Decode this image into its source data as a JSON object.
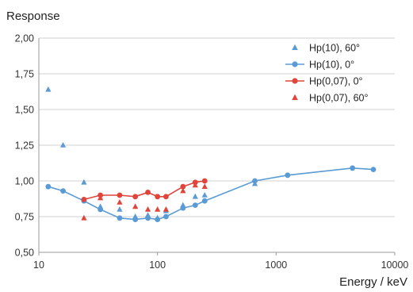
{
  "chart_data": {
    "type": "scatter",
    "ylabel": "Response",
    "xlabel": "Energy / keV",
    "x_scale": "log",
    "xlim": [
      10,
      10000
    ],
    "ylim": [
      0.5,
      2.0
    ],
    "x_ticks": [
      10,
      100,
      1000,
      10000
    ],
    "x_tick_labels": [
      "10",
      "100",
      "1000",
      "10000"
    ],
    "y_ticks": [
      0.5,
      0.75,
      1.0,
      1.25,
      1.5,
      1.75,
      2.0
    ],
    "y_tick_labels": [
      "0,50",
      "0,75",
      "1,00",
      "1,25",
      "1,50",
      "1,75",
      "2,00"
    ],
    "grid": "horizontal",
    "legend_position": "top-right",
    "series": [
      {
        "name": "Hp(10), 60°",
        "marker": "triangle",
        "line": false,
        "color": "#5b9bd5",
        "points": [
          [
            12,
            1.64
          ],
          [
            16,
            1.25
          ],
          [
            24,
            0.99
          ],
          [
            33,
            0.82
          ],
          [
            48,
            0.8
          ],
          [
            65,
            0.75
          ],
          [
            83,
            0.76
          ],
          [
            100,
            0.74
          ],
          [
            118,
            0.79
          ],
          [
            164,
            0.83
          ],
          [
            208,
            0.89
          ],
          [
            250,
            0.9
          ],
          [
            662,
            0.98
          ]
        ]
      },
      {
        "name": "Hp(10), 0°",
        "marker": "circle",
        "line": true,
        "color": "#5b9bd5",
        "points": [
          [
            12,
            0.96
          ],
          [
            16,
            0.93
          ],
          [
            24,
            0.86
          ],
          [
            33,
            0.8
          ],
          [
            48,
            0.74
          ],
          [
            65,
            0.73
          ],
          [
            83,
            0.74
          ],
          [
            100,
            0.73
          ],
          [
            118,
            0.75
          ],
          [
            164,
            0.81
          ],
          [
            208,
            0.83
          ],
          [
            250,
            0.86
          ],
          [
            662,
            1.0
          ],
          [
            1250,
            1.04
          ],
          [
            4400,
            1.09
          ],
          [
            6600,
            1.08
          ]
        ]
      },
      {
        "name": "Hp(0,07), 0°",
        "marker": "circle",
        "line": true,
        "color": "#e0443a",
        "points": [
          [
            24,
            0.87
          ],
          [
            33,
            0.9
          ],
          [
            48,
            0.9
          ],
          [
            65,
            0.89
          ],
          [
            83,
            0.92
          ],
          [
            100,
            0.89
          ],
          [
            118,
            0.89
          ],
          [
            164,
            0.96
          ],
          [
            208,
            0.99
          ],
          [
            250,
            1.0
          ]
        ]
      },
      {
        "name": "Hp(0,07), 60°",
        "marker": "triangle",
        "line": false,
        "color": "#e0443a",
        "points": [
          [
            24,
            0.74
          ],
          [
            33,
            0.88
          ],
          [
            48,
            0.85
          ],
          [
            65,
            0.82
          ],
          [
            83,
            0.8
          ],
          [
            100,
            0.8
          ],
          [
            118,
            0.8
          ],
          [
            164,
            0.93
          ],
          [
            208,
            0.97
          ],
          [
            250,
            0.96
          ]
        ]
      }
    ]
  }
}
